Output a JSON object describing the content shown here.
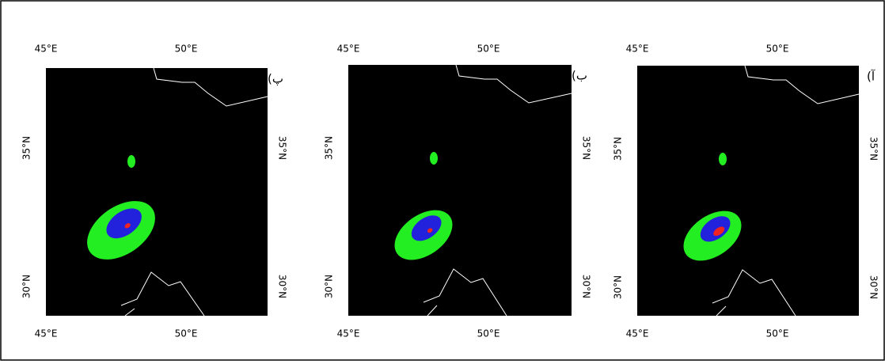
{
  "panels": [
    {
      "label": "(پ",
      "lon_ticks": [
        "45°E",
        "50°E"
      ],
      "lat_ticks": [
        "35°N",
        "30°N"
      ]
    },
    {
      "label": "(ب",
      "lon_ticks": [
        "45°E",
        "50°E"
      ],
      "lat_ticks": [
        "35°N",
        "30°N"
      ]
    },
    {
      "label": "(آ",
      "lon_ticks": [
        "45°E",
        "50°E"
      ],
      "lat_ticks": [
        "35°N",
        "30°N"
      ]
    }
  ]
}
